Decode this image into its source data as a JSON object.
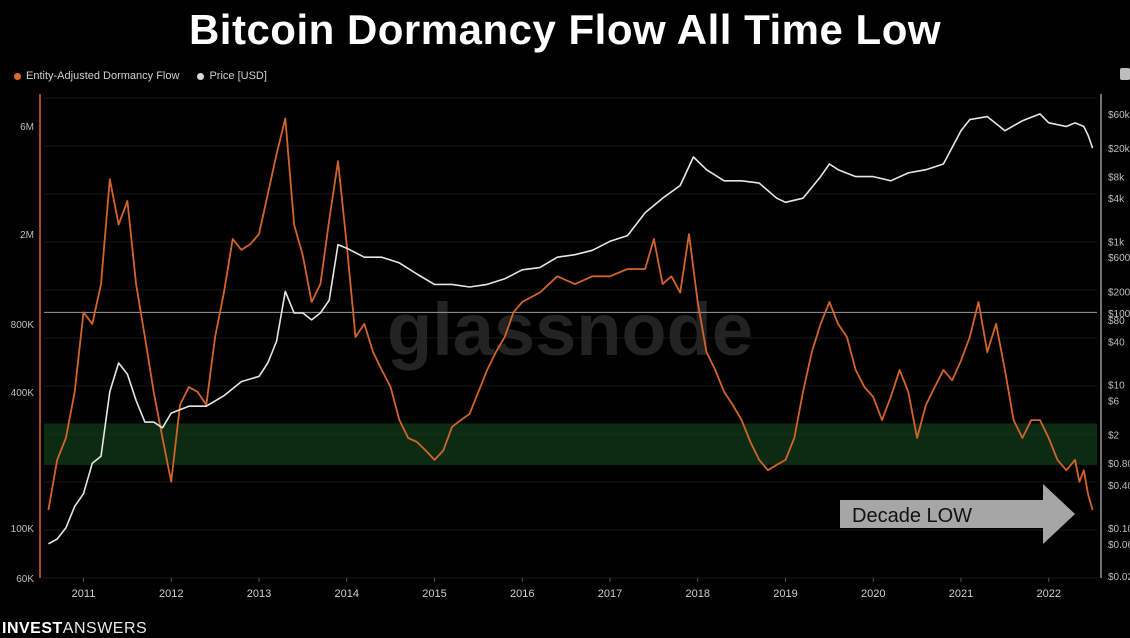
{
  "title": "Bitcoin Dormancy Flow All Time Low",
  "legend": [
    {
      "label": "Entity-Adjusted Dormancy Flow",
      "color": "#e06a2a"
    },
    {
      "label": "Price [USD]",
      "color": "#d9d9d9"
    }
  ],
  "watermark": "glassnode",
  "annotation": "Decade LOW",
  "brand": {
    "bold": "INVEST",
    "light": "ANSWERS"
  },
  "colors": {
    "dormancy": "#d2642a",
    "price": "#e6e6e6",
    "band": "#0f3a1a",
    "background": "#000000"
  },
  "chart_data": {
    "type": "line",
    "x_tick_labels": [
      "2011",
      "2012",
      "2013",
      "2014",
      "2015",
      "2016",
      "2017",
      "2018",
      "2019",
      "2020",
      "2021",
      "2022"
    ],
    "left_axis": {
      "scale": "log",
      "tick_labels": [
        "6M",
        "2M",
        "800K",
        "400K",
        "100K",
        "60K"
      ],
      "range": [
        60000,
        8000000
      ]
    },
    "right_axis": {
      "scale": "log",
      "tick_labels": [
        "$100",
        "$60k",
        "$20k",
        "$8k",
        "$4k",
        "$1k",
        "$600",
        "$200",
        "$80",
        "$40",
        "$10",
        "$6",
        "$2",
        "$0.80",
        "$0.40",
        "$0.10",
        "$0.06",
        "$0.02"
      ],
      "range": [
        0.02,
        100000
      ]
    },
    "reference_line_left_value": 900000,
    "green_band_left_range": [
      190000,
      290000
    ],
    "series": [
      {
        "name": "Entity-Adjusted Dormancy Flow",
        "axis": "left",
        "x": [
          2010.6,
          2010.7,
          2010.8,
          2010.9,
          2011.0,
          2011.1,
          2011.2,
          2011.3,
          2011.4,
          2011.5,
          2011.6,
          2011.7,
          2011.8,
          2011.9,
          2012.0,
          2012.1,
          2012.2,
          2012.3,
          2012.4,
          2012.5,
          2012.6,
          2012.7,
          2012.8,
          2012.9,
          2013.0,
          2013.1,
          2013.2,
          2013.3,
          2013.4,
          2013.5,
          2013.6,
          2013.7,
          2013.8,
          2013.9,
          2014.0,
          2014.1,
          2014.2,
          2014.3,
          2014.4,
          2014.5,
          2014.6,
          2014.7,
          2014.8,
          2014.9,
          2015.0,
          2015.1,
          2015.2,
          2015.3,
          2015.4,
          2015.5,
          2015.6,
          2015.7,
          2015.8,
          2015.9,
          2016.0,
          2016.2,
          2016.4,
          2016.6,
          2016.8,
          2017.0,
          2017.2,
          2017.4,
          2017.5,
          2017.6,
          2017.7,
          2017.8,
          2017.9,
          2018.0,
          2018.1,
          2018.2,
          2018.3,
          2018.4,
          2018.5,
          2018.6,
          2018.7,
          2018.8,
          2018.9,
          2019.0,
          2019.1,
          2019.2,
          2019.3,
          2019.4,
          2019.5,
          2019.6,
          2019.7,
          2019.8,
          2019.9,
          2020.0,
          2020.1,
          2020.2,
          2020.3,
          2020.4,
          2020.5,
          2020.6,
          2020.7,
          2020.8,
          2020.9,
          2021.0,
          2021.1,
          2021.2,
          2021.3,
          2021.4,
          2021.5,
          2021.6,
          2021.7,
          2021.8,
          2021.9,
          2022.0,
          2022.1,
          2022.2,
          2022.3,
          2022.35,
          2022.4,
          2022.45,
          2022.5
        ],
        "y": [
          120000,
          200000,
          250000,
          400000,
          900000,
          800000,
          1200000,
          3500000,
          2200000,
          2800000,
          1200000,
          700000,
          400000,
          250000,
          160000,
          350000,
          420000,
          400000,
          350000,
          700000,
          1100000,
          1900000,
          1700000,
          1800000,
          2000000,
          3000000,
          4500000,
          6500000,
          2200000,
          1600000,
          1000000,
          1200000,
          2300000,
          4200000,
          1800000,
          700000,
          800000,
          600000,
          500000,
          420000,
          300000,
          250000,
          240000,
          220000,
          200000,
          220000,
          280000,
          300000,
          320000,
          400000,
          500000,
          600000,
          700000,
          900000,
          1000000,
          1100000,
          1300000,
          1200000,
          1300000,
          1300000,
          1400000,
          1400000,
          1900000,
          1200000,
          1300000,
          1100000,
          2000000,
          1000000,
          600000,
          500000,
          400000,
          350000,
          300000,
          240000,
          200000,
          180000,
          190000,
          200000,
          250000,
          400000,
          600000,
          800000,
          1000000,
          800000,
          700000,
          500000,
          420000,
          380000,
          300000,
          380000,
          500000,
          400000,
          250000,
          350000,
          420000,
          500000,
          450000,
          550000,
          700000,
          1000000,
          600000,
          800000,
          500000,
          300000,
          250000,
          300000,
          300000,
          250000,
          200000,
          180000,
          200000,
          160000,
          180000,
          140000,
          120000
        ],
        "color": "#d2642a"
      },
      {
        "name": "Price [USD]",
        "axis": "right",
        "x": [
          2010.6,
          2010.7,
          2010.8,
          2010.9,
          2011.0,
          2011.1,
          2011.2,
          2011.3,
          2011.4,
          2011.5,
          2011.6,
          2011.7,
          2011.8,
          2011.9,
          2012.0,
          2012.2,
          2012.4,
          2012.6,
          2012.8,
          2013.0,
          2013.1,
          2013.2,
          2013.3,
          2013.4,
          2013.5,
          2013.6,
          2013.7,
          2013.8,
          2013.9,
          2014.0,
          2014.2,
          2014.4,
          2014.6,
          2014.8,
          2015.0,
          2015.2,
          2015.4,
          2015.6,
          2015.8,
          2016.0,
          2016.2,
          2016.4,
          2016.6,
          2016.8,
          2017.0,
          2017.2,
          2017.4,
          2017.6,
          2017.8,
          2017.95,
          2018.1,
          2018.3,
          2018.5,
          2018.7,
          2018.9,
          2019.0,
          2019.2,
          2019.4,
          2019.5,
          2019.6,
          2019.8,
          2020.0,
          2020.2,
          2020.4,
          2020.6,
          2020.8,
          2021.0,
          2021.1,
          2021.3,
          2021.5,
          2021.7,
          2021.9,
          2022.0,
          2022.2,
          2022.3,
          2022.4,
          2022.45,
          2022.5
        ],
        "y": [
          0.06,
          0.07,
          0.1,
          0.2,
          0.3,
          0.8,
          1,
          8,
          20,
          14,
          6,
          3,
          3,
          2.5,
          4,
          5,
          5,
          7,
          11,
          13,
          20,
          40,
          200,
          100,
          100,
          80,
          100,
          150,
          900,
          800,
          600,
          600,
          500,
          350,
          250,
          250,
          230,
          250,
          300,
          400,
          430,
          600,
          650,
          750,
          1000,
          1200,
          2500,
          4000,
          6000,
          15000,
          10000,
          7000,
          7000,
          6500,
          4000,
          3500,
          4000,
          8000,
          12000,
          10000,
          8000,
          8000,
          7000,
          9000,
          10000,
          12000,
          35000,
          50000,
          55000,
          35000,
          48000,
          60000,
          45000,
          40000,
          45000,
          40000,
          30000,
          20000
        ],
        "color": "#e6e6e6"
      }
    ],
    "xlabel": "",
    "ylabel": ""
  }
}
